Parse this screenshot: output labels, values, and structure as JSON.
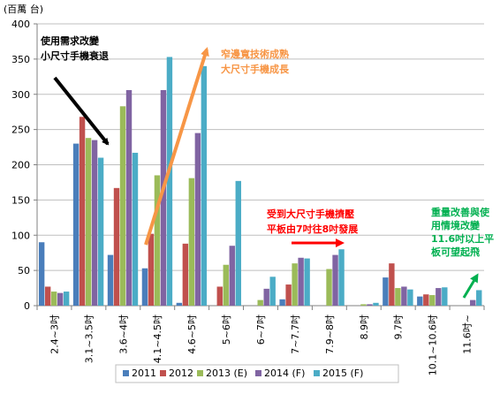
{
  "chart_data": {
    "type": "bar",
    "unit_label": "(百萬 台)",
    "ylim": [
      0,
      400
    ],
    "yticks": [
      0,
      50,
      100,
      150,
      200,
      250,
      300,
      350,
      400
    ],
    "grid": true,
    "legend_position": "bottom",
    "categories": [
      "2.4~3吋",
      "3.1~3.5吋",
      "3.6~4吋",
      "4.1~4.5吋",
      "4.6~5吋",
      "5~6吋",
      "6~7吋",
      "7~7.7吋",
      "7.9~8吋",
      "8.9吋",
      "9.7吋",
      "10.1~10.6吋",
      "11.6吋~"
    ],
    "series": [
      {
        "name": "2011",
        "color": "#4a7ebb",
        "values": [
          90,
          230,
          72,
          53,
          4,
          0,
          0,
          9,
          0,
          0,
          40,
          13,
          0
        ]
      },
      {
        "name": "2012",
        "color": "#c0504d",
        "values": [
          27,
          268,
          167,
          102,
          88,
          27,
          0,
          30,
          0,
          0,
          60,
          16,
          0
        ]
      },
      {
        "name": "2013 (E)",
        "color": "#9bbb59",
        "values": [
          20,
          238,
          283,
          185,
          181,
          58,
          8,
          60,
          52,
          2,
          25,
          15,
          0
        ]
      },
      {
        "name": "2014 (F)",
        "color": "#8064a2",
        "values": [
          18,
          235,
          306,
          306,
          245,
          85,
          24,
          68,
          72,
          2,
          27,
          25,
          8
        ]
      },
      {
        "name": "2015 (F)",
        "color": "#4bacc6",
        "values": [
          20,
          210,
          217,
          353,
          340,
          177,
          41,
          67,
          80,
          4,
          23,
          26,
          22
        ]
      }
    ],
    "annotations": [
      {
        "lines": [
          "使用需求改變",
          "小尺寸手機衰退"
        ],
        "color": "#000000"
      },
      {
        "lines": [
          "窄邊寬技術成熟",
          "大尺寸手機成長"
        ],
        "color": "#f79646"
      },
      {
        "lines": [
          "受到大尺寸手機擠壓",
          "平板由7吋往8吋發展"
        ],
        "color": "#ff0000"
      },
      {
        "lines": [
          "重量改善與使",
          "用情境改變",
          "11.6吋以上平",
          "板可望起飛"
        ],
        "color": "#00b050"
      }
    ]
  }
}
